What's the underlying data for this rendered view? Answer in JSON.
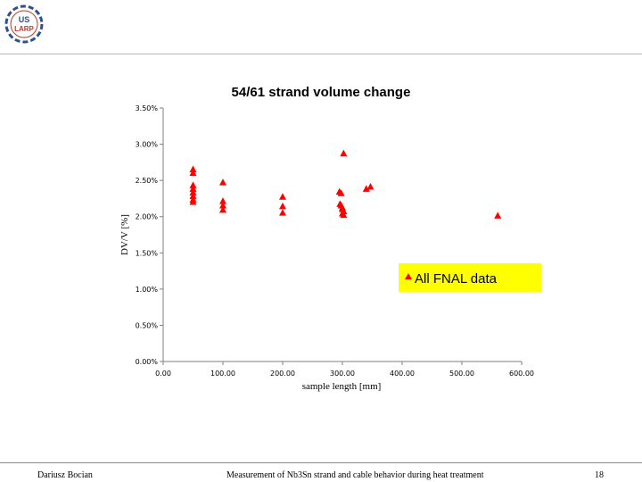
{
  "logo": {
    "line1": "US",
    "line2": "LARP"
  },
  "colors": {
    "marker": "#ff0000",
    "legend_bg": "#ffff00",
    "axis": "#7f7f7f",
    "logo_blue": "#2c4f96",
    "logo_red": "#c0392b"
  },
  "chart_data": {
    "type": "scatter",
    "title": "54/61 strand volume change",
    "xlabel": "sample length [mm]",
    "ylabel": "DV/V  [%]",
    "xlim": [
      0,
      600
    ],
    "ylim": [
      0,
      3.5
    ],
    "x_ticks": [
      "0.00",
      "100.00",
      "200.00",
      "300.00",
      "400.00",
      "500.00",
      "600.00"
    ],
    "y_ticks": [
      "0.00%",
      "0.50%",
      "1.00%",
      "1.50%",
      "2.00%",
      "2.50%",
      "3.00%",
      "3.50%"
    ],
    "grid": false,
    "legend_position": "right",
    "series": [
      {
        "name": "All FNAL data",
        "marker": "triangle",
        "x": [
          50,
          50,
          50,
          50,
          50,
          50,
          50,
          50,
          100,
          100,
          100,
          100,
          200,
          200,
          200,
          295,
          298,
          296,
          298,
          300,
          300,
          302,
          300,
          302,
          302,
          340,
          347,
          560
        ],
        "y": [
          2.65,
          2.6,
          2.43,
          2.38,
          2.33,
          2.28,
          2.23,
          2.2,
          2.47,
          2.21,
          2.15,
          2.09,
          2.27,
          2.14,
          2.05,
          2.34,
          2.32,
          2.17,
          2.15,
          2.12,
          2.1,
          2.07,
          2.04,
          2.02,
          2.87,
          2.38,
          2.41,
          2.01
        ]
      }
    ]
  },
  "footer": {
    "author": "Dariusz Bocian",
    "title": "Measurement of Nb3Sn strand and cable behavior during heat treatment",
    "page": "18"
  }
}
